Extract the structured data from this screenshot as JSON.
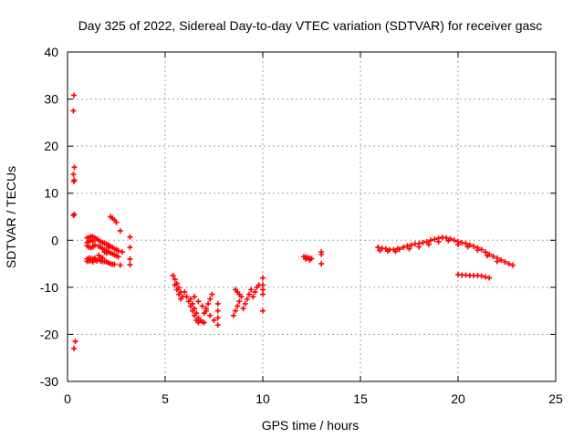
{
  "chart_data": {
    "type": "scatter",
    "title": "Day 325 of 2022, Sidereal Day-to-day VTEC variation (SDTVAR) for receiver gasc",
    "xlabel": "GPS time / hours",
    "ylabel": "SDTVAR / TECUs",
    "xlim": [
      0,
      25
    ],
    "ylim": [
      -30,
      40
    ],
    "xticks": [
      0,
      5,
      10,
      15,
      20,
      25
    ],
    "yticks": [
      -30,
      -20,
      -10,
      0,
      10,
      20,
      30,
      40
    ],
    "grid": true,
    "marker": "+",
    "color": "#ff0000",
    "series": [
      {
        "name": "SDTVAR",
        "points": [
          [
            0.33,
            30.8
          ],
          [
            0.3,
            27.5
          ],
          [
            0.35,
            15.5
          ],
          [
            0.3,
            14.0
          ],
          [
            0.35,
            12.8
          ],
          [
            0.32,
            12.5
          ],
          [
            0.35,
            5.5
          ],
          [
            0.3,
            5.3
          ],
          [
            0.4,
            -21.5
          ],
          [
            0.33,
            -23.0
          ],
          [
            1.0,
            0.5
          ],
          [
            1.0,
            -0.5
          ],
          [
            1.0,
            -1.2
          ],
          [
            1.0,
            -4.0
          ],
          [
            1.0,
            -4.5
          ],
          [
            1.1,
            0.6
          ],
          [
            1.1,
            -0.3
          ],
          [
            1.1,
            -1.5
          ],
          [
            1.1,
            -3.8
          ],
          [
            1.1,
            -4.4
          ],
          [
            1.2,
            0.8
          ],
          [
            1.2,
            0.0
          ],
          [
            1.2,
            -1.6
          ],
          [
            1.2,
            -3.9
          ],
          [
            1.2,
            -4.3
          ],
          [
            1.3,
            0.7
          ],
          [
            1.3,
            -0.2
          ],
          [
            1.3,
            -1.4
          ],
          [
            1.3,
            -4.0
          ],
          [
            1.3,
            -4.6
          ],
          [
            1.4,
            0.5
          ],
          [
            1.4,
            -1.0
          ],
          [
            1.4,
            -3.8
          ],
          [
            1.4,
            -4.2
          ],
          [
            1.5,
            0.3
          ],
          [
            1.5,
            -4.4
          ],
          [
            1.6,
            0.0
          ],
          [
            1.6,
            -1.3
          ],
          [
            1.6,
            -3.2
          ],
          [
            1.6,
            -4.1
          ],
          [
            1.7,
            -0.3
          ],
          [
            1.7,
            -1.5
          ],
          [
            1.7,
            -3.6
          ],
          [
            1.7,
            -4.4
          ],
          [
            1.8,
            -0.5
          ],
          [
            1.8,
            -1.8
          ],
          [
            1.8,
            -3.8
          ],
          [
            1.8,
            -4.5
          ],
          [
            1.9,
            -0.7
          ],
          [
            1.9,
            -2.0
          ],
          [
            1.9,
            -2.5
          ],
          [
            1.9,
            -4.5
          ],
          [
            2.0,
            -0.8
          ],
          [
            2.0,
            -2.3
          ],
          [
            2.0,
            -2.7
          ],
          [
            2.0,
            -4.6
          ],
          [
            2.1,
            -1.0
          ],
          [
            2.1,
            -1.5
          ],
          [
            2.1,
            -2.5
          ],
          [
            2.1,
            -4.8
          ],
          [
            2.2,
            5.0
          ],
          [
            2.2,
            -1.3
          ],
          [
            2.2,
            -2.7
          ],
          [
            2.2,
            -5.0
          ],
          [
            2.3,
            4.7
          ],
          [
            2.3,
            -1.5
          ],
          [
            2.3,
            -2.9
          ],
          [
            2.3,
            -5.1
          ],
          [
            2.4,
            4.3
          ],
          [
            2.4,
            -1.8
          ],
          [
            2.4,
            -3.1
          ],
          [
            2.4,
            -5.1
          ],
          [
            2.5,
            3.8
          ],
          [
            2.5,
            -2.0
          ],
          [
            2.5,
            -3.3
          ],
          [
            2.6,
            -2.2
          ],
          [
            2.6,
            -3.5
          ],
          [
            2.7,
            2.0
          ],
          [
            2.7,
            -5.3
          ],
          [
            2.8,
            -2.5
          ],
          [
            3.2,
            0.7
          ],
          [
            3.2,
            -1.5
          ],
          [
            3.2,
            -4.0
          ],
          [
            3.2,
            -5.2
          ],
          [
            5.4,
            -7.5
          ],
          [
            5.5,
            -8.3
          ],
          [
            5.6,
            -9.2
          ],
          [
            5.7,
            -10.1
          ],
          [
            5.8,
            -11.0
          ],
          [
            5.9,
            -12.0
          ],
          [
            5.5,
            -9.5
          ],
          [
            5.6,
            -10.5
          ],
          [
            5.7,
            -11.5
          ],
          [
            5.8,
            -12.5
          ],
          [
            6.0,
            -11.0
          ],
          [
            6.1,
            -12.0
          ],
          [
            6.2,
            -13.0
          ],
          [
            6.3,
            -14.0
          ],
          [
            6.4,
            -15.0
          ],
          [
            6.5,
            -16.0
          ],
          [
            6.6,
            -17.0
          ],
          [
            6.7,
            -17.5
          ],
          [
            6.3,
            -12.5
          ],
          [
            6.4,
            -13.5
          ],
          [
            6.5,
            -14.5
          ],
          [
            6.6,
            -15.5
          ],
          [
            6.7,
            -16.5
          ],
          [
            6.8,
            -17.0
          ],
          [
            6.9,
            -17.3
          ],
          [
            7.0,
            -17.5
          ],
          [
            6.5,
            -12.0
          ],
          [
            6.7,
            -13.0
          ],
          [
            6.9,
            -14.0
          ],
          [
            7.1,
            -15.0
          ],
          [
            7.3,
            -16.0
          ],
          [
            7.5,
            -17.0
          ],
          [
            7.0,
            -15.5
          ],
          [
            7.1,
            -14.5
          ],
          [
            7.2,
            -13.5
          ],
          [
            7.3,
            -12.5
          ],
          [
            7.4,
            -11.5
          ],
          [
            7.7,
            -13.5
          ],
          [
            7.7,
            -15.0
          ],
          [
            7.7,
            -16.5
          ],
          [
            7.7,
            -18.0
          ],
          [
            8.5,
            -16.0
          ],
          [
            8.6,
            -15.0
          ],
          [
            8.7,
            -14.0
          ],
          [
            8.8,
            -13.0
          ],
          [
            8.9,
            -12.0
          ],
          [
            9.0,
            -14.5
          ],
          [
            9.1,
            -13.5
          ],
          [
            9.2,
            -12.5
          ],
          [
            9.3,
            -11.5
          ],
          [
            9.4,
            -10.5
          ],
          [
            8.6,
            -10.5
          ],
          [
            8.7,
            -11.0
          ],
          [
            8.8,
            -11.5
          ],
          [
            9.5,
            -12.0
          ],
          [
            9.6,
            -11.0
          ],
          [
            9.7,
            -10.0
          ],
          [
            9.8,
            -9.5
          ],
          [
            10.0,
            -8.0
          ],
          [
            10.0,
            -9.5
          ],
          [
            10.0,
            -10.5
          ],
          [
            10.0,
            -11.5
          ],
          [
            10.0,
            -15.0
          ],
          [
            12.1,
            -3.5
          ],
          [
            12.2,
            -3.6
          ],
          [
            12.3,
            -3.7
          ],
          [
            12.4,
            -3.8
          ],
          [
            12.5,
            -3.9
          ],
          [
            12.2,
            -4.0
          ],
          [
            12.4,
            -4.2
          ],
          [
            13.0,
            -2.5
          ],
          [
            13.0,
            -3.0
          ],
          [
            13.0,
            -5.0
          ],
          [
            15.9,
            -1.5
          ],
          [
            16.1,
            -1.7
          ],
          [
            16.3,
            -1.8
          ],
          [
            16.5,
            -2.0
          ],
          [
            16.7,
            -2.0
          ],
          [
            16.9,
            -1.8
          ],
          [
            16.0,
            -2.2
          ],
          [
            16.4,
            -2.3
          ],
          [
            16.8,
            -2.4
          ],
          [
            17.0,
            -1.9
          ],
          [
            17.2,
            -1.5
          ],
          [
            17.4,
            -1.2
          ],
          [
            17.6,
            -1.0
          ],
          [
            17.8,
            -0.8
          ],
          [
            18.0,
            -0.7
          ],
          [
            18.2,
            -0.5
          ],
          [
            18.4,
            -0.3
          ],
          [
            18.6,
            0.0
          ],
          [
            18.8,
            0.2
          ],
          [
            19.0,
            0.4
          ],
          [
            19.2,
            0.6
          ],
          [
            19.4,
            0.5
          ],
          [
            19.6,
            0.3
          ],
          [
            19.8,
            0.0
          ],
          [
            20.0,
            -0.3
          ],
          [
            20.2,
            -0.5
          ],
          [
            20.4,
            -0.7
          ],
          [
            20.6,
            -1.0
          ],
          [
            20.8,
            -1.3
          ],
          [
            21.0,
            -1.6
          ],
          [
            21.2,
            -2.0
          ],
          [
            21.4,
            -2.5
          ],
          [
            21.6,
            -3.0
          ],
          [
            21.8,
            -3.4
          ],
          [
            22.0,
            -3.8
          ],
          [
            22.2,
            -4.2
          ],
          [
            22.4,
            -4.6
          ],
          [
            22.6,
            -5.0
          ],
          [
            22.8,
            -5.3
          ],
          [
            17.5,
            -1.8
          ],
          [
            18.0,
            -1.4
          ],
          [
            18.5,
            -0.9
          ],
          [
            19.0,
            -0.3
          ],
          [
            19.5,
            -0.1
          ],
          [
            20.0,
            -0.9
          ],
          [
            20.5,
            -1.4
          ],
          [
            21.0,
            -2.1
          ],
          [
            21.5,
            -3.3
          ],
          [
            22.0,
            -4.5
          ],
          [
            20.0,
            -7.3
          ],
          [
            20.2,
            -7.4
          ],
          [
            20.4,
            -7.4
          ],
          [
            20.6,
            -7.5
          ],
          [
            20.8,
            -7.5
          ],
          [
            21.0,
            -7.5
          ],
          [
            21.2,
            -7.6
          ],
          [
            21.4,
            -7.8
          ],
          [
            21.6,
            -8.0
          ]
        ]
      }
    ]
  }
}
